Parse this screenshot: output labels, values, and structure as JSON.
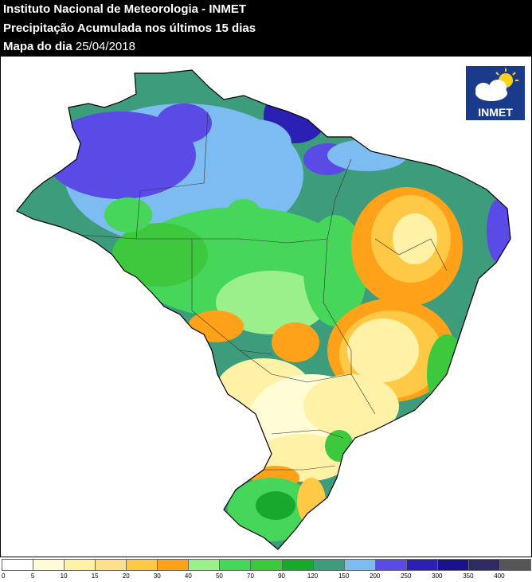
{
  "header": {
    "line1": "Instituto Nacional de Meteorologia - INMET",
    "line2": "Precipitação Acumulada nos últimos 15 dias",
    "line3_label": "Mapa do dia",
    "line3_date": "25/04/2018"
  },
  "logo": {
    "text": "INMET",
    "icon": "cloud-sun-icon"
  },
  "legend": {
    "ticks": [
      "0",
      "5",
      "10",
      "15",
      "20",
      "30",
      "40",
      "50",
      "70",
      "90",
      "120",
      "150",
      "200",
      "250",
      "300",
      "350",
      "400"
    ],
    "colors": [
      "#ffffff",
      "#fffcd6",
      "#fff1a6",
      "#ffe08a",
      "#ffc845",
      "#ffa21a",
      "#9cf08c",
      "#45d65a",
      "#3ec83e",
      "#18a82c",
      "#3d9c7c",
      "#7cbcf0",
      "#5a4ae6",
      "#2a20b4",
      "#1a1288",
      "#2e2a64",
      "#555555"
    ]
  },
  "colors": {
    "dry_light": "#fffcd6",
    "dry_yellow": "#fff1a6",
    "orange_light": "#ffc845",
    "orange": "#ffa21a",
    "green_light": "#9cf08c",
    "green": "#3ec83e",
    "green_dark": "#18a82c",
    "teal": "#3d9c7c",
    "blue_light": "#7cbcf0",
    "blue": "#5a4ae6",
    "blue_dark": "#2a20b4"
  }
}
